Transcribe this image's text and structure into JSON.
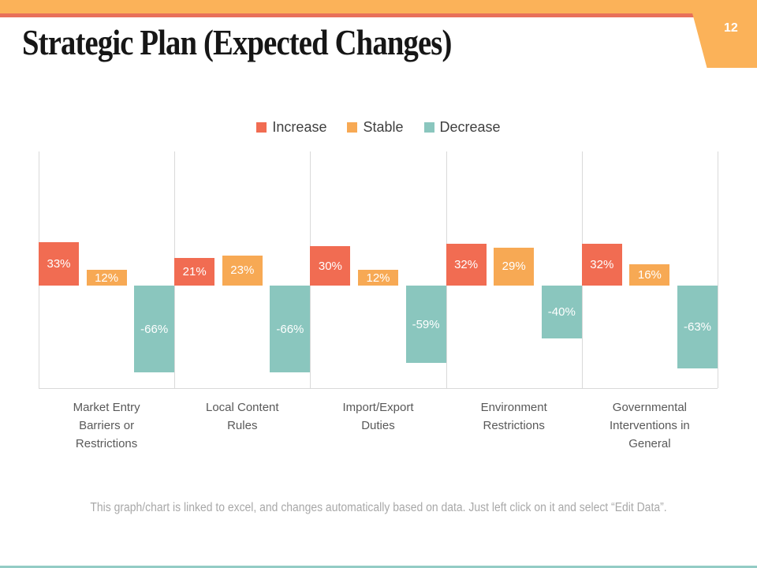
{
  "slide": {
    "page_number": "12",
    "title": "Strategic Plan (Expected Changes)",
    "footnote": "This graph/chart is linked to excel, and changes automatically based on data. Just left click on it and select “Edit Data”."
  },
  "colors": {
    "top_bar": "#fbb259",
    "accent_line": "#e8705a",
    "tab": "#fbb259",
    "increase": "#f16c52",
    "stable": "#f7a954",
    "decrease": "#8ac6be",
    "gridline": "#d9d9d9",
    "bottom_line": "#93ccc5",
    "data_label": "#ffffff"
  },
  "chart_data": {
    "type": "bar",
    "title": "",
    "categories": [
      "Market Entry Barriers or Restrictions",
      "Local Content Rules",
      "Import/Export Duties",
      "Environment Restrictions",
      "Governmental Interventions in General"
    ],
    "categories_display": [
      "Market Entry\nBarriers or\nRestrictions",
      "Local Content\nRules",
      "Import/Export\nDuties",
      "Environment\nRestrictions",
      "Governmental\nInterventions in\nGeneral"
    ],
    "series": [
      {
        "name": "Increase",
        "color": "#f16c52",
        "values": [
          33,
          21,
          30,
          32,
          32
        ]
      },
      {
        "name": "Stable",
        "color": "#f7a954",
        "values": [
          12,
          23,
          12,
          29,
          16
        ]
      },
      {
        "name": "Decrease",
        "color": "#8ac6be",
        "values": [
          -66,
          -66,
          -59,
          -40,
          -63
        ]
      }
    ],
    "data_labels": true,
    "label_format": "percent",
    "legend_position": "top",
    "legend_entries": [
      "Increase",
      "Stable",
      "Decrease"
    ],
    "ylim": [
      -80,
      102
    ],
    "grid": "vertical category separators only",
    "axis_tick_labels_visible": false
  }
}
